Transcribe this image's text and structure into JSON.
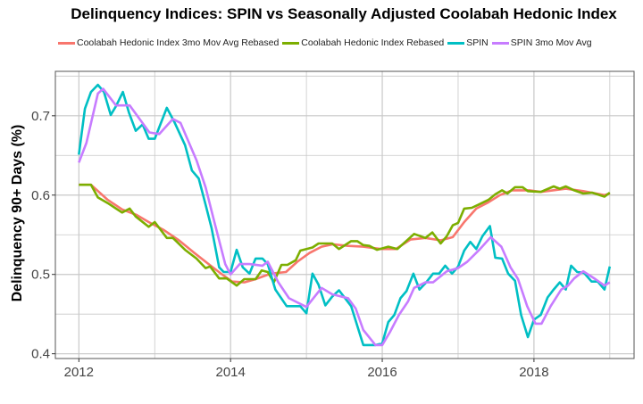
{
  "chart_data": {
    "type": "line",
    "title": "Delinquency Indices: SPIN vs Seasonally Adjusted Coolabah Hedonic Index",
    "xlabel": "",
    "ylabel": "Delinquency 90+ Days (%)",
    "xlim": [
      2011.69,
      2019.32
    ],
    "ylim": [
      0.394,
      0.756
    ],
    "xticks": [
      "2012",
      "2014",
      "2016",
      "2018"
    ],
    "xtick_values": [
      2012,
      2014,
      2016,
      2018
    ],
    "yticks": [
      "0.4",
      "0.5",
      "0.6",
      "0.7"
    ],
    "ytick_values": [
      0.4,
      0.5,
      0.6,
      0.7
    ],
    "grid": true,
    "legend_position": "top",
    "series": [
      {
        "name": "Coolabah Hedonic Index 3mo Mov Avg Rebased",
        "color": "#F8766D",
        "x": [
          2012.0,
          2012.16,
          2012.38,
          2012.57,
          2012.76,
          2012.92,
          2013.12,
          2013.32,
          2013.51,
          2013.71,
          2013.86,
          2014.02,
          2014.18,
          2014.33,
          2014.53,
          2014.73,
          2014.88,
          2015.04,
          2015.2,
          2015.35,
          2015.55,
          2015.75,
          2015.98,
          2016.18,
          2016.37,
          2016.57,
          2016.77,
          2016.93,
          2017.08,
          2017.24,
          2017.4,
          2017.55,
          2017.71,
          2017.94,
          2018.09,
          2018.42,
          2018.65,
          2018.93,
          2019.0
        ],
        "y": [
          0.613,
          0.613,
          0.594,
          0.582,
          0.575,
          0.566,
          0.556,
          0.543,
          0.528,
          0.513,
          0.502,
          0.491,
          0.49,
          0.494,
          0.501,
          0.503,
          0.516,
          0.527,
          0.535,
          0.538,
          0.536,
          0.535,
          0.532,
          0.532,
          0.544,
          0.546,
          0.543,
          0.547,
          0.566,
          0.583,
          0.591,
          0.6,
          0.606,
          0.606,
          0.604,
          0.608,
          0.605,
          0.6,
          0.602
        ]
      },
      {
        "name": "Coolabah Hedonic Index Rebased",
        "color": "#7CAE00",
        "x": [
          2012.0,
          2012.16,
          2012.25,
          2012.38,
          2012.57,
          2012.67,
          2012.75,
          2012.92,
          2013.0,
          2013.16,
          2013.24,
          2013.4,
          2013.55,
          2013.67,
          2013.73,
          2013.85,
          2013.95,
          2014.08,
          2014.18,
          2014.33,
          2014.41,
          2014.49,
          2014.57,
          2014.67,
          2014.75,
          2014.86,
          2014.92,
          2015.08,
          2015.16,
          2015.34,
          2015.43,
          2015.59,
          2015.67,
          2015.75,
          2015.83,
          2015.93,
          2016.08,
          2016.2,
          2016.42,
          2016.57,
          2016.66,
          2016.77,
          2016.85,
          2016.93,
          2017.0,
          2017.08,
          2017.18,
          2017.27,
          2017.4,
          2017.49,
          2017.58,
          2017.65,
          2017.75,
          2017.85,
          2017.92,
          2018.09,
          2018.26,
          2018.34,
          2018.42,
          2018.53,
          2018.65,
          2018.77,
          2018.93,
          2019.0
        ],
        "y": [
          0.613,
          0.613,
          0.597,
          0.59,
          0.578,
          0.583,
          0.573,
          0.56,
          0.566,
          0.546,
          0.546,
          0.531,
          0.52,
          0.508,
          0.51,
          0.495,
          0.495,
          0.486,
          0.494,
          0.494,
          0.505,
          0.503,
          0.49,
          0.512,
          0.512,
          0.518,
          0.53,
          0.534,
          0.539,
          0.539,
          0.532,
          0.542,
          0.542,
          0.537,
          0.536,
          0.531,
          0.535,
          0.532,
          0.551,
          0.546,
          0.553,
          0.539,
          0.548,
          0.562,
          0.565,
          0.583,
          0.584,
          0.588,
          0.594,
          0.601,
          0.606,
          0.602,
          0.61,
          0.61,
          0.605,
          0.604,
          0.611,
          0.608,
          0.611,
          0.606,
          0.602,
          0.603,
          0.598,
          0.603
        ]
      },
      {
        "name": "SPIN",
        "color": "#00BFC4",
        "x": [
          2012.0,
          2012.08,
          2012.16,
          2012.25,
          2012.33,
          2012.42,
          2012.49,
          2012.58,
          2012.66,
          2012.75,
          2012.84,
          2012.92,
          2013.0,
          2013.16,
          2013.26,
          2013.4,
          2013.49,
          2013.58,
          2013.67,
          2013.75,
          2013.85,
          2013.91,
          2014.0,
          2014.08,
          2014.16,
          2014.25,
          2014.33,
          2014.42,
          2014.49,
          2014.59,
          2014.74,
          2014.92,
          2015.0,
          2015.08,
          2015.16,
          2015.25,
          2015.34,
          2015.43,
          2015.59,
          2015.75,
          2015.91,
          2016.0,
          2016.08,
          2016.16,
          2016.24,
          2016.32,
          2016.41,
          2016.49,
          2016.58,
          2016.67,
          2016.75,
          2016.83,
          2016.92,
          2017.0,
          2017.08,
          2017.16,
          2017.24,
          2017.32,
          2017.42,
          2017.49,
          2017.58,
          2017.66,
          2017.75,
          2017.83,
          2017.92,
          2018.0,
          2018.09,
          2018.18,
          2018.26,
          2018.34,
          2018.42,
          2018.49,
          2018.57,
          2018.66,
          2018.76,
          2018.84,
          2018.93,
          2019.0
        ],
        "y": [
          0.651,
          0.709,
          0.73,
          0.739,
          0.73,
          0.701,
          0.712,
          0.73,
          0.704,
          0.681,
          0.689,
          0.671,
          0.671,
          0.71,
          0.692,
          0.663,
          0.631,
          0.621,
          0.588,
          0.558,
          0.509,
          0.503,
          0.503,
          0.531,
          0.509,
          0.501,
          0.52,
          0.52,
          0.513,
          0.481,
          0.46,
          0.46,
          0.451,
          0.501,
          0.487,
          0.461,
          0.472,
          0.48,
          0.46,
          0.411,
          0.411,
          0.413,
          0.44,
          0.449,
          0.47,
          0.479,
          0.501,
          0.481,
          0.49,
          0.501,
          0.501,
          0.511,
          0.501,
          0.51,
          0.53,
          0.541,
          0.532,
          0.548,
          0.561,
          0.521,
          0.52,
          0.501,
          0.492,
          0.449,
          0.421,
          0.443,
          0.449,
          0.471,
          0.481,
          0.49,
          0.481,
          0.511,
          0.503,
          0.502,
          0.491,
          0.491,
          0.481,
          0.51
        ]
      },
      {
        "name": "SPIN 3mo Mov Avg",
        "color": "#C77CFF",
        "x": [
          2012.0,
          2012.1,
          2012.25,
          2012.32,
          2012.49,
          2012.67,
          2012.93,
          2013.06,
          2013.24,
          2013.34,
          2013.55,
          2013.67,
          2013.79,
          2013.93,
          2014.0,
          2014.12,
          2014.25,
          2014.42,
          2014.49,
          2014.63,
          2014.77,
          2015.0,
          2015.2,
          2015.34,
          2015.55,
          2015.65,
          2015.75,
          2015.91,
          2016.0,
          2016.1,
          2016.22,
          2016.34,
          2016.42,
          2016.57,
          2016.67,
          2016.85,
          2017.0,
          2017.12,
          2017.28,
          2017.43,
          2017.57,
          2017.69,
          2017.79,
          2017.91,
          2018.02,
          2018.1,
          2018.22,
          2018.36,
          2018.45,
          2018.53,
          2018.65,
          2018.81,
          2018.93,
          2019.0
        ],
        "y": [
          0.641,
          0.666,
          0.728,
          0.734,
          0.713,
          0.713,
          0.679,
          0.677,
          0.696,
          0.691,
          0.644,
          0.61,
          0.565,
          0.513,
          0.5,
          0.513,
          0.513,
          0.511,
          0.516,
          0.49,
          0.47,
          0.459,
          0.483,
          0.475,
          0.47,
          0.457,
          0.43,
          0.411,
          0.411,
          0.427,
          0.449,
          0.466,
          0.483,
          0.49,
          0.49,
          0.504,
          0.508,
          0.516,
          0.531,
          0.547,
          0.535,
          0.509,
          0.494,
          0.46,
          0.438,
          0.438,
          0.46,
          0.481,
          0.486,
          0.495,
          0.504,
          0.494,
          0.486,
          0.49
        ]
      }
    ]
  }
}
